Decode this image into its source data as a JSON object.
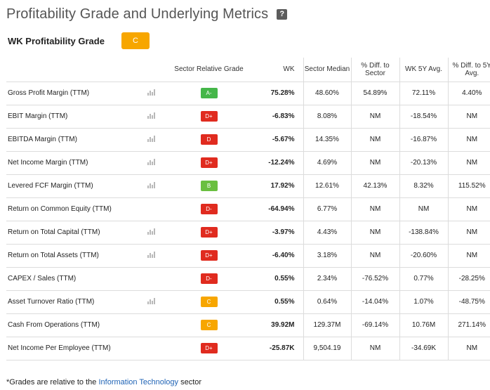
{
  "header": {
    "title": "Profitability Grade and Underlying Metrics",
    "help_label": "?"
  },
  "grade_section": {
    "title": "WK Profitability Grade",
    "overall_grade": "C",
    "overall_color": "#f7a600"
  },
  "columns": [
    "",
    "",
    "Sector Relative Grade",
    "WK",
    "Sector Median",
    "% Diff. to Sector",
    "WK 5Y Avg.",
    "% Diff. to 5Y Avg."
  ],
  "icons": {
    "chart": "bar-chart-icon",
    "help": "question-icon"
  },
  "grade_colors": {
    "A-": "#45b649",
    "B": "#6abf40",
    "C": "#f7a600",
    "D+": "#e02b1f",
    "D": "#e02b1f",
    "D-": "#e02b1f"
  },
  "rows": [
    {
      "metric": "Gross Profit Margin (TTM)",
      "chart": true,
      "grade": "A-",
      "wk": "75.28%",
      "sector_median": "48.60%",
      "diff_sector": "54.89%",
      "avg5y": "72.11%",
      "diff_5y": "4.40%"
    },
    {
      "metric": "EBIT Margin (TTM)",
      "chart": true,
      "grade": "D+",
      "wk": "-6.83%",
      "sector_median": "8.08%",
      "diff_sector": "NM",
      "avg5y": "-18.54%",
      "diff_5y": "NM"
    },
    {
      "metric": "EBITDA Margin (TTM)",
      "chart": true,
      "grade": "D",
      "wk": "-5.67%",
      "sector_median": "14.35%",
      "diff_sector": "NM",
      "avg5y": "-16.87%",
      "diff_5y": "NM"
    },
    {
      "metric": "Net Income Margin (TTM)",
      "chart": true,
      "grade": "D+",
      "wk": "-12.24%",
      "sector_median": "4.69%",
      "diff_sector": "NM",
      "avg5y": "-20.13%",
      "diff_5y": "NM"
    },
    {
      "metric": "Levered FCF Margin (TTM)",
      "chart": true,
      "grade": "B",
      "wk": "17.92%",
      "sector_median": "12.61%",
      "diff_sector": "42.13%",
      "avg5y": "8.32%",
      "diff_5y": "115.52%"
    },
    {
      "metric": "Return on Common Equity (TTM)",
      "chart": false,
      "grade": "D-",
      "wk": "-64.94%",
      "sector_median": "6.77%",
      "diff_sector": "NM",
      "avg5y": "NM",
      "diff_5y": "NM"
    },
    {
      "metric": "Return on Total Capital (TTM)",
      "chart": true,
      "grade": "D+",
      "wk": "-3.97%",
      "sector_median": "4.43%",
      "diff_sector": "NM",
      "avg5y": "-138.84%",
      "diff_5y": "NM"
    },
    {
      "metric": "Return on Total Assets (TTM)",
      "chart": true,
      "grade": "D+",
      "wk": "-6.40%",
      "sector_median": "3.18%",
      "diff_sector": "NM",
      "avg5y": "-20.60%",
      "diff_5y": "NM"
    },
    {
      "metric": "CAPEX / Sales (TTM)",
      "chart": false,
      "grade": "D-",
      "wk": "0.55%",
      "sector_median": "2.34%",
      "diff_sector": "-76.52%",
      "avg5y": "0.77%",
      "diff_5y": "-28.25%"
    },
    {
      "metric": "Asset Turnover Ratio (TTM)",
      "chart": true,
      "grade": "C",
      "wk": "0.55%",
      "sector_median": "0.64%",
      "diff_sector": "-14.04%",
      "avg5y": "1.07%",
      "diff_5y": "-48.75%"
    },
    {
      "metric": "Cash From Operations (TTM)",
      "chart": false,
      "grade": "C",
      "wk": "39.92M",
      "sector_median": "129.37M",
      "diff_sector": "-69.14%",
      "avg5y": "10.76M",
      "diff_5y": "271.14%"
    },
    {
      "metric": "Net Income Per Employee (TTM)",
      "chart": false,
      "grade": "D+",
      "wk": "-25.87K",
      "sector_median": "9,504.19",
      "diff_sector": "NM",
      "avg5y": "-34.69K",
      "diff_5y": "NM"
    }
  ],
  "footnote": {
    "prefix": "*Grades are relative to the ",
    "link": "Information Technology",
    "suffix": " sector"
  }
}
